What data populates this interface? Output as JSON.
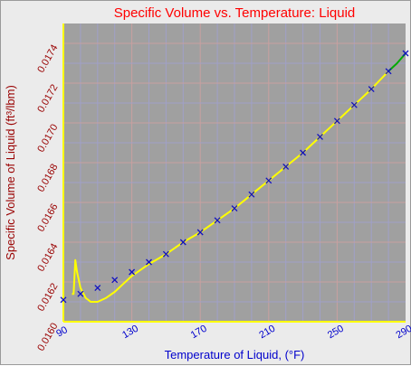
{
  "chart_data": {
    "type": "line",
    "title": "Specific Volume vs. Temperature: Liquid",
    "xlabel": "Temperature of Liquid, (°F)",
    "ylabel": "Specific Volume of Liquid (ft³/lbm)",
    "xlim": [
      90,
      290
    ],
    "ylim": [
      0.016,
      0.0175
    ],
    "x_ticks": [
      "90",
      "130",
      "170",
      "210",
      "250",
      "290"
    ],
    "y_ticks": [
      "0.0160",
      "0.0162",
      "0.0164",
      "0.0166",
      "0.0168",
      "0.0170",
      "0.0172",
      "0.0174"
    ],
    "grid": true,
    "colors": {
      "plot_bg": "#a0a0a0",
      "major_grid": "#c8a0a0",
      "minor_grid": "#a0a0c8",
      "curve": "#ffff00",
      "curve_end": "#00aa00",
      "markers": "#1010c0",
      "title": "#ff0000",
      "x_text": "#0000cc",
      "y_text": "#990000"
    },
    "series": [
      {
        "kind": "markers",
        "x": [
          90,
          100,
          110,
          120,
          130,
          140,
          150,
          160,
          170,
          180,
          190,
          200,
          210,
          220,
          230,
          240,
          250,
          260,
          270,
          280,
          290
        ],
        "y": [
          0.01611,
          0.01614,
          0.01617,
          0.01621,
          0.01625,
          0.0163,
          0.01634,
          0.0164,
          0.01645,
          0.01651,
          0.01657,
          0.01664,
          0.01671,
          0.01678,
          0.01685,
          0.01693,
          0.01701,
          0.01709,
          0.01717,
          0.01726,
          0.01735
        ]
      },
      {
        "kind": "curve",
        "x": [
          95,
          96,
          97,
          98,
          100,
          103,
          106,
          110,
          115,
          120,
          125,
          130,
          140,
          150,
          160,
          170,
          180,
          190,
          200,
          210,
          220,
          230,
          240,
          250,
          260,
          270,
          280
        ],
        "y": [
          0.01614,
          0.01614,
          0.01631,
          0.01625,
          0.01617,
          0.01612,
          0.0161,
          0.0161,
          0.01612,
          0.01615,
          0.01619,
          0.01623,
          0.01629,
          0.01634,
          0.0164,
          0.01645,
          0.01651,
          0.01657,
          0.01664,
          0.01671,
          0.01678,
          0.01685,
          0.01693,
          0.01701,
          0.01709,
          0.01717,
          0.01726
        ]
      },
      {
        "kind": "curve-end",
        "x": [
          280,
          285,
          290
        ],
        "y": [
          0.01726,
          0.0173,
          0.01735
        ]
      }
    ]
  }
}
